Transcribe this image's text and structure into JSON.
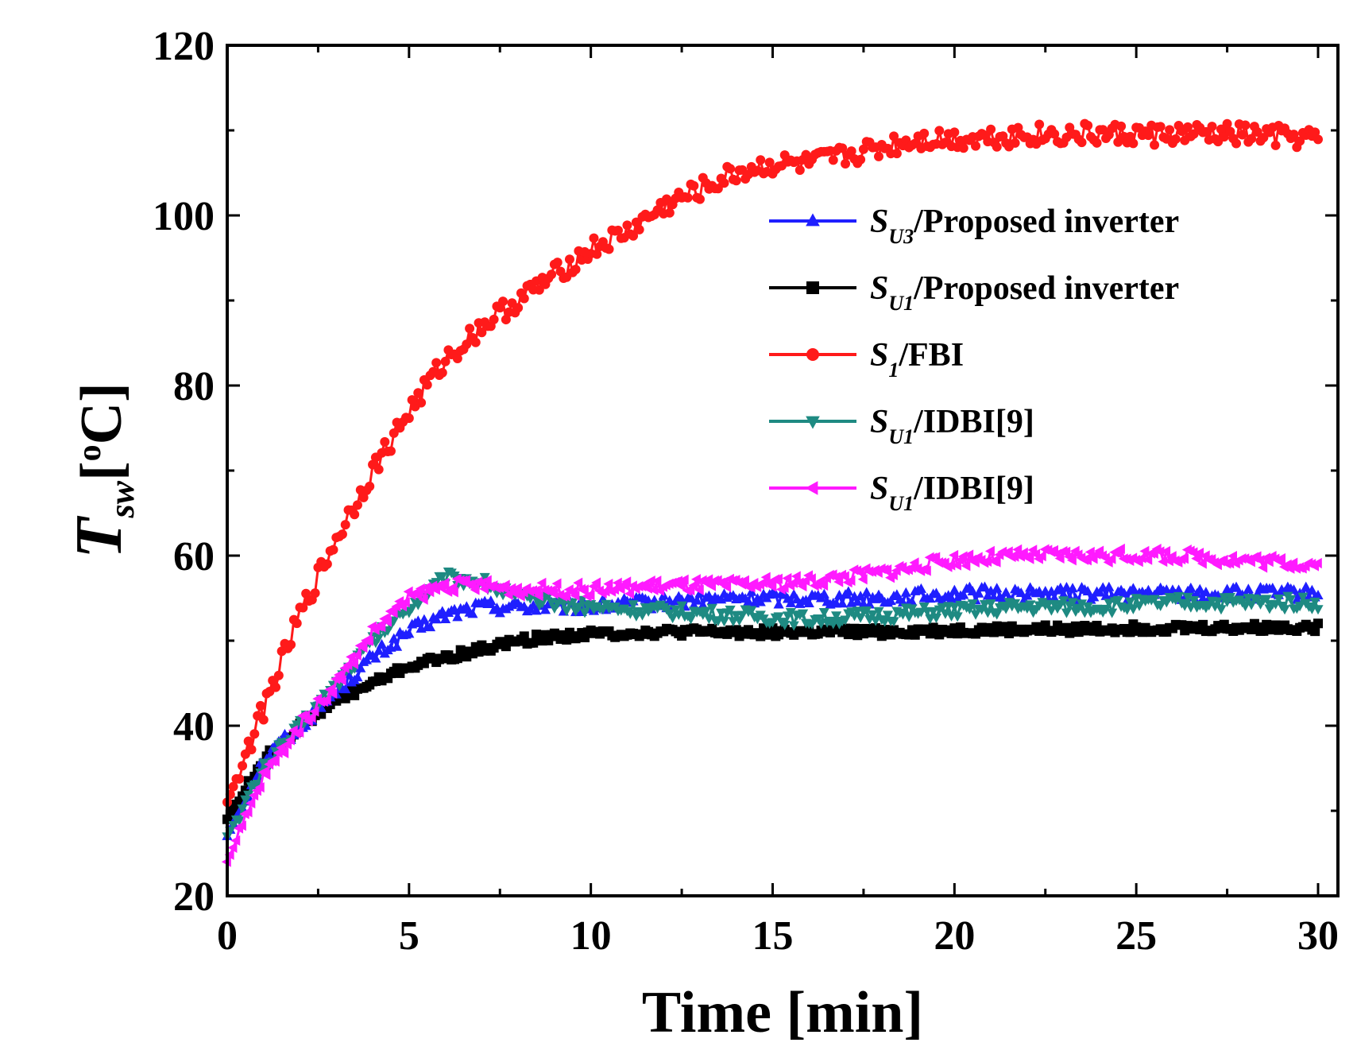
{
  "chart_data": {
    "type": "line",
    "title": "",
    "xlabel": "Time [min]",
    "ylabel": {
      "main": "T",
      "sub": "sw",
      "unit_open": "[",
      "unit_sup": "o",
      "unit_close": "C]"
    },
    "xlim": [
      0,
      30.5
    ],
    "ylim": [
      20,
      120
    ],
    "xticks": [
      0,
      5,
      10,
      15,
      20,
      25,
      30
    ],
    "xtick_labels": [
      "0",
      "5",
      "10",
      "15",
      "20",
      "25",
      "30"
    ],
    "yticks": [
      20,
      40,
      60,
      80,
      100,
      120
    ],
    "ytick_labels": [
      "20",
      "40",
      "60",
      "80",
      "100",
      "120"
    ],
    "grid": false,
    "legend_position": "upper-right",
    "series": [
      {
        "name": "SU3/Proposed inverter",
        "label": {
          "main": "S",
          "sub": "U3",
          "rest": "/Proposed inverter"
        },
        "color": "#1f1fff",
        "marker": "triangle-up",
        "noise": 0.8,
        "x": [
          0,
          1,
          2,
          3,
          4,
          5,
          6,
          7,
          8,
          9,
          10,
          12,
          14,
          16,
          18,
          20,
          22,
          24,
          26,
          28,
          30
        ],
        "values": [
          27,
          36,
          40,
          44,
          48,
          51,
          53,
          54,
          54,
          54,
          54,
          54.5,
          55,
          55,
          55,
          55.5,
          55.5,
          55.5,
          55.5,
          55.5,
          55.5
        ]
      },
      {
        "name": "SU1/Proposed inverter",
        "label": {
          "main": "S",
          "sub": "U1",
          "rest": "/Proposed inverter"
        },
        "color": "#000000",
        "marker": "square",
        "noise": 0.5,
        "x": [
          0,
          1,
          2,
          3,
          4,
          5,
          6,
          7,
          8,
          9,
          10,
          12,
          14,
          16,
          18,
          20,
          22,
          24,
          26,
          28,
          30
        ],
        "values": [
          29,
          36,
          40,
          43,
          45,
          47,
          48,
          49,
          50,
          50.5,
          50.8,
          51,
          51,
          51,
          51,
          51.2,
          51.3,
          51.4,
          51.5,
          51.5,
          51.6
        ]
      },
      {
        "name": "S1/FBI",
        "label": {
          "main": "S",
          "sub": "1",
          "rest": "/FBI"
        },
        "color": "#ff1a1a",
        "marker": "circle",
        "noise": 1.3,
        "x": [
          0,
          1,
          2,
          3,
          4,
          5,
          6,
          7,
          8,
          9,
          10,
          11,
          12,
          13,
          14,
          15,
          16,
          17,
          18,
          19,
          20,
          22,
          24,
          26,
          28,
          30
        ],
        "values": [
          31,
          42,
          53,
          62,
          70,
          77,
          83,
          87,
          90,
          93,
          96,
          98,
          101,
          103,
          105,
          106,
          106,
          107,
          108,
          109,
          109,
          109.5,
          109.5,
          109.5,
          109.5,
          109
        ]
      },
      {
        "name": "SU1/IDBI[9]",
        "label": {
          "main": "S",
          "sub": "U1",
          "rest": "/IDBI[9]"
        },
        "color": "#1e8a82",
        "marker": "triangle-down",
        "noise": 0.8,
        "x": [
          0,
          1,
          2,
          3,
          4,
          5,
          6,
          7,
          8,
          9,
          10,
          12,
          14,
          16,
          18,
          20,
          22,
          24,
          26,
          28,
          30
        ],
        "values": [
          27,
          35,
          40,
          45,
          50,
          54,
          57.5,
          57,
          55,
          54.5,
          54,
          53.5,
          53,
          52.5,
          53,
          53.5,
          54,
          54,
          54.5,
          54.5,
          54.5
        ]
      },
      {
        "name": "SU1/IDBI[9]",
        "label": {
          "main": "S",
          "sub": "U1",
          "rest": "/IDBI[9]"
        },
        "color": "#ff1aff",
        "marker": "triangle-left",
        "noise": 0.8,
        "x": [
          0,
          1,
          2,
          3,
          4,
          5,
          6,
          7,
          8,
          9,
          10,
          12,
          14,
          16,
          18,
          20,
          22,
          24,
          26,
          28,
          30
        ],
        "values": [
          24,
          34,
          40,
          45,
          51,
          55,
          56.5,
          56.5,
          56,
          56,
          56,
          56.5,
          56.5,
          57,
          58,
          59.5,
          60,
          60,
          60,
          59.5,
          59
        ]
      }
    ]
  }
}
